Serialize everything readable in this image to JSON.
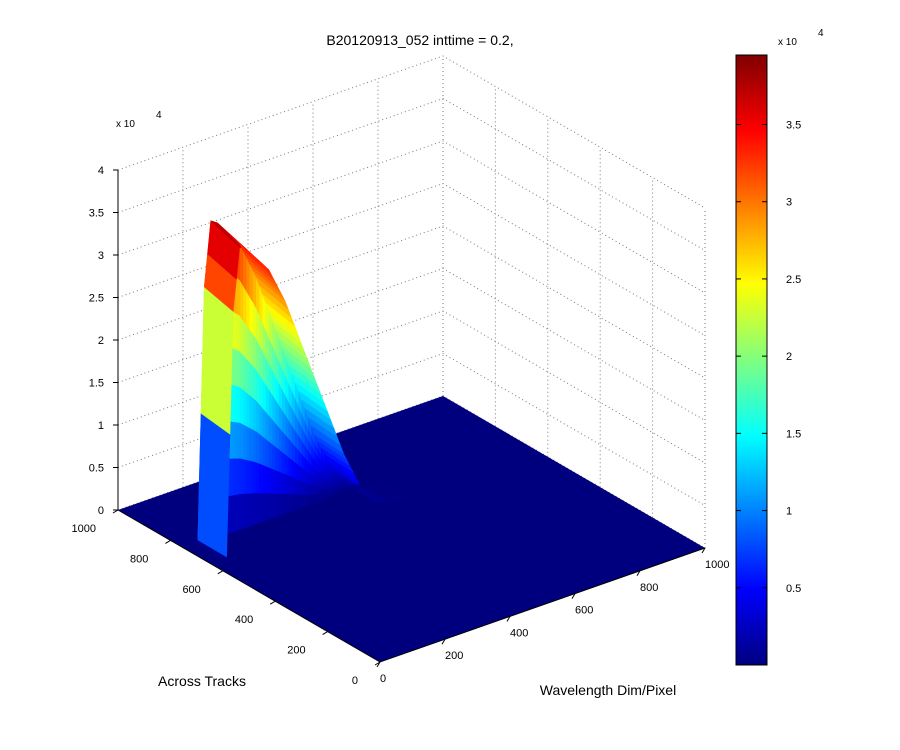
{
  "chart_data": {
    "type": "surface3d",
    "title": "B20120913_052 inttime = 0.2,",
    "xlabel": "Wavelength Dim/Pixel",
    "ylabel": "Across Tracks",
    "zlabel": "",
    "xlim": [
      0,
      1000
    ],
    "ylim": [
      0,
      1000
    ],
    "zlim": [
      0,
      40000
    ],
    "x_ticks": [
      "0",
      "200",
      "400",
      "600",
      "800",
      "1000"
    ],
    "y_ticks": [
      "0",
      "200",
      "400",
      "600",
      "800",
      "1000"
    ],
    "z_ticks": [
      "0",
      "0.5",
      "1",
      "1.5",
      "2",
      "2.5",
      "3",
      "3.5",
      "4"
    ],
    "z_multiplier": "x 10",
    "z_multiplier_exp": "4",
    "grid": true,
    "colormap": "jet",
    "colorbar": {
      "range": [
        0,
        39500
      ],
      "ticks": [
        "0.5",
        "1",
        "1.5",
        "2",
        "2.5",
        "3",
        "3.5"
      ],
      "multiplier": "x 10",
      "multiplier_exp": "4"
    },
    "peak": {
      "x": 90,
      "y": 680,
      "z": 38000
    },
    "profile_along_x": [
      {
        "x": 0,
        "z": 0
      },
      {
        "x": 40,
        "z": 500
      },
      {
        "x": 60,
        "z": 30000
      },
      {
        "x": 80,
        "z": 37500
      },
      {
        "x": 100,
        "z": 37000
      },
      {
        "x": 130,
        "z": 35500
      },
      {
        "x": 170,
        "z": 33500
      },
      {
        "x": 220,
        "z": 29000
      },
      {
        "x": 280,
        "z": 22000
      },
      {
        "x": 340,
        "z": 15000
      },
      {
        "x": 400,
        "z": 8000
      },
      {
        "x": 450,
        "z": 3500
      },
      {
        "x": 500,
        "z": 800
      },
      {
        "x": 560,
        "z": 0
      },
      {
        "x": 1000,
        "z": 0
      }
    ],
    "band_across_tracks": {
      "center": 690,
      "half_width": 55
    }
  }
}
